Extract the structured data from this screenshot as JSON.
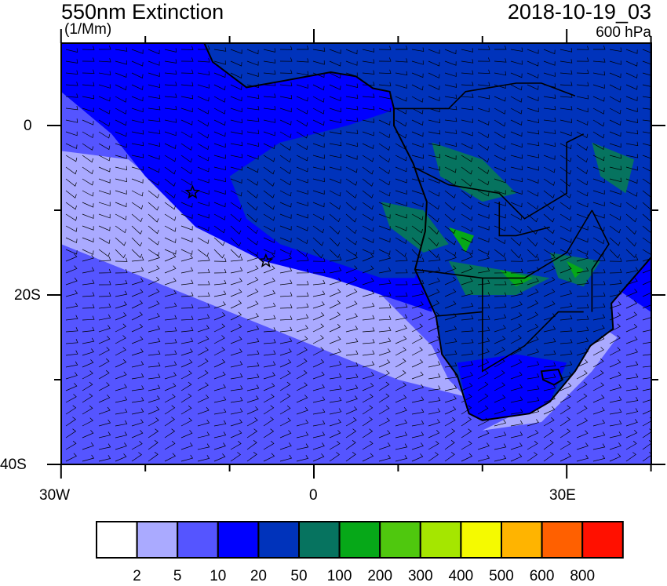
{
  "header": {
    "title": "550nm Extinction",
    "units": "(1/Mm)",
    "datetime": "2018-10-19_03",
    "level": "600 hPa"
  },
  "axes": {
    "lon_ticks": [
      {
        "value": -30,
        "label": "30W"
      },
      {
        "value": 0,
        "label": "0"
      },
      {
        "value": 30,
        "label": "30E"
      }
    ],
    "lat_ticks": [
      {
        "value": 0,
        "label": "0"
      },
      {
        "value": -20,
        "label": "20S"
      },
      {
        "value": -40,
        "label": "40S"
      }
    ],
    "lon_range": [
      -30,
      40
    ],
    "lat_range": [
      -40,
      9.7
    ]
  },
  "colorbar": {
    "colors": [
      "#ffffff",
      "#aaaaff",
      "#5555ff",
      "#0000ff",
      "#0033bb",
      "#06735f",
      "#06a818",
      "#4fc80e",
      "#a5e600",
      "#f5fa00",
      "#ffb400",
      "#ff6000",
      "#ff1000"
    ],
    "labels": [
      "2",
      "5",
      "10",
      "20",
      "50",
      "100",
      "200",
      "300",
      "400",
      "500",
      "600",
      "800"
    ]
  },
  "markers": [
    {
      "type": "star",
      "lon": -14.4,
      "lat": -7.9
    },
    {
      "type": "star",
      "lon": -5.7,
      "lat": -16.0
    }
  ],
  "overlay": "wind-barbs"
}
